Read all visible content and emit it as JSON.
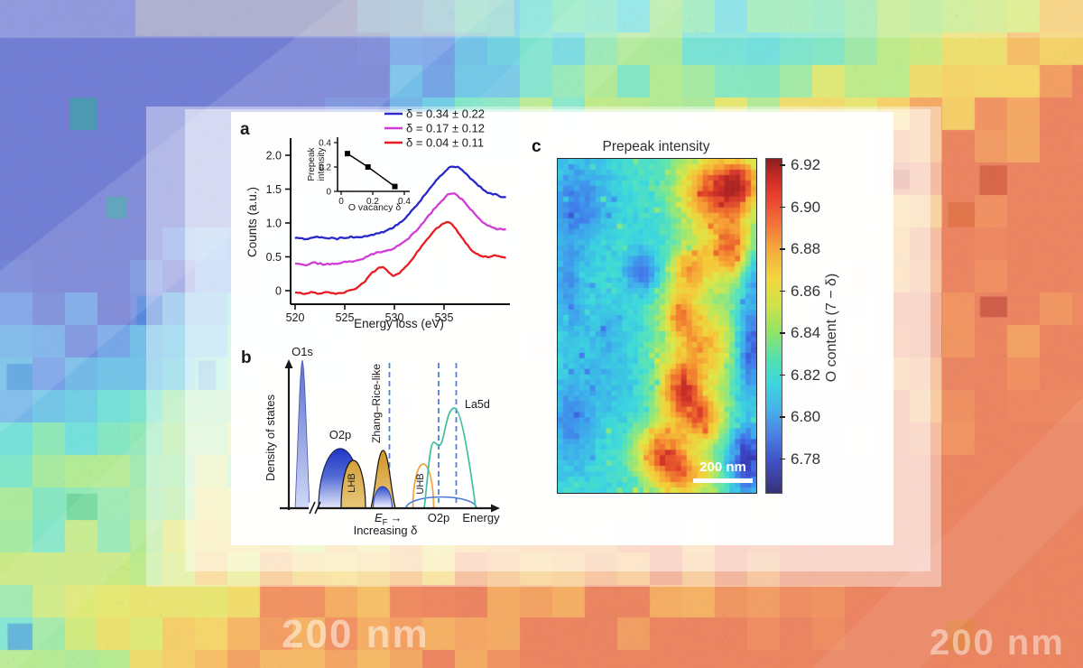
{
  "background": {
    "watermarks": [
      {
        "text": "200 nm"
      },
      {
        "text": "200 nm"
      }
    ]
  },
  "panels": {
    "a": {
      "label": "a"
    },
    "b": {
      "label": "b",
      "ylabel": "Density of states",
      "xlabel": "Energy",
      "ef": "E",
      "ef_sub": "F",
      "ef_arrow": "→",
      "increasing_delta": "Increasing δ",
      "bands": {
        "o1s": "O1s",
        "o2p_valence": "O2p",
        "lhb": "LHB",
        "zhang_rice": "Zhang–Rice-like",
        "uhb": "UHB",
        "la5d": "La5d",
        "o2p_conduction": "O2p"
      }
    },
    "c": {
      "label": "c"
    }
  },
  "chart_data": [
    {
      "id": "eels-spectra",
      "type": "line",
      "xlabel": "Energy loss (eV)",
      "ylabel": "Counts (a.u.)",
      "xlim": [
        520,
        541.5
      ],
      "ylim": [
        -0.15,
        2.15
      ],
      "xticks": [
        "520",
        "525",
        "530",
        "535"
      ],
      "yticks": [
        "0",
        "0.5",
        "1.0",
        "1.5",
        "2.0"
      ],
      "legend_position": "top-right",
      "series": [
        {
          "name": "δ = 0.34 ± 0.22",
          "color": "#2a28cb",
          "points": [
            [
              520,
              0.78
            ],
            [
              521,
              0.76
            ],
            [
              522,
              0.79
            ],
            [
              523,
              0.77
            ],
            [
              524,
              0.78
            ],
            [
              525,
              0.77
            ],
            [
              526,
              0.79
            ],
            [
              527,
              0.8
            ],
            [
              528,
              0.83
            ],
            [
              529,
              0.87
            ],
            [
              530,
              0.94
            ],
            [
              530.8,
              1.03
            ],
            [
              531.6,
              1.15
            ],
            [
              532.4,
              1.29
            ],
            [
              533.2,
              1.44
            ],
            [
              534,
              1.59
            ],
            [
              534.8,
              1.72
            ],
            [
              535.5,
              1.8
            ],
            [
              536,
              1.84
            ],
            [
              536.5,
              1.82
            ],
            [
              537.1,
              1.75
            ],
            [
              537.8,
              1.64
            ],
            [
              538.6,
              1.53
            ],
            [
              539.4,
              1.45
            ],
            [
              540.3,
              1.41
            ],
            [
              541.2,
              1.38
            ]
          ]
        },
        {
          "name": "δ = 0.17 ± 0.12",
          "color": "#d13bd6",
          "points": [
            [
              520,
              0.4
            ],
            [
              521,
              0.38
            ],
            [
              522,
              0.41
            ],
            [
              523,
              0.39
            ],
            [
              524,
              0.4
            ],
            [
              525,
              0.42
            ],
            [
              526,
              0.44
            ],
            [
              526.8,
              0.48
            ],
            [
              527.6,
              0.53
            ],
            [
              528.4,
              0.57
            ],
            [
              529.2,
              0.59
            ],
            [
              530,
              0.63
            ],
            [
              530.8,
              0.7
            ],
            [
              531.6,
              0.8
            ],
            [
              532.4,
              0.92
            ],
            [
              533.2,
              1.06
            ],
            [
              534,
              1.2
            ],
            [
              534.8,
              1.33
            ],
            [
              535.4,
              1.42
            ],
            [
              535.9,
              1.44
            ],
            [
              536.4,
              1.4
            ],
            [
              537,
              1.32
            ],
            [
              537.7,
              1.2
            ],
            [
              538.5,
              1.07
            ],
            [
              539.3,
              0.97
            ],
            [
              540.2,
              0.92
            ],
            [
              541.2,
              0.9
            ]
          ]
        },
        {
          "name": "δ = 0.04 ± 0.11",
          "color": "#e91c25",
          "points": [
            [
              520,
              -0.03
            ],
            [
              520.8,
              -0.05
            ],
            [
              521.6,
              -0.02
            ],
            [
              522.4,
              -0.04
            ],
            [
              523.2,
              -0.02
            ],
            [
              524,
              -0.05
            ],
            [
              524.8,
              -0.03
            ],
            [
              525.6,
              0.0
            ],
            [
              526.4,
              0.06
            ],
            [
              527.2,
              0.17
            ],
            [
              527.8,
              0.27
            ],
            [
              528.4,
              0.34
            ],
            [
              528.9,
              0.35
            ],
            [
              529.4,
              0.27
            ],
            [
              529.9,
              0.22
            ],
            [
              530.4,
              0.24
            ],
            [
              531,
              0.33
            ],
            [
              531.8,
              0.47
            ],
            [
              532.6,
              0.63
            ],
            [
              533.4,
              0.78
            ],
            [
              534.2,
              0.92
            ],
            [
              535,
              1.0
            ],
            [
              535.5,
              1.02
            ],
            [
              536,
              0.95
            ],
            [
              536.6,
              0.83
            ],
            [
              537.2,
              0.7
            ],
            [
              537.9,
              0.58
            ],
            [
              538.6,
              0.52
            ],
            [
              539.4,
              0.5
            ],
            [
              540.2,
              0.52
            ],
            [
              541.2,
              0.48
            ]
          ]
        }
      ]
    },
    {
      "id": "prepeak-vs-vacancy-inset",
      "type": "scatter",
      "xlabel": "O vacancy δ",
      "ylabel": "Prepeak intensity",
      "ylabel_lines": [
        "Prepeak",
        "intensity"
      ],
      "xticks": [
        "0",
        "0.2",
        "0.4"
      ],
      "yticks": [
        "0",
        "0.2",
        "0.4"
      ],
      "marker": "square",
      "color": "#000000",
      "line": true,
      "points": [
        [
          0.04,
          0.31
        ],
        [
          0.17,
          0.2
        ],
        [
          0.34,
          0.04
        ]
      ]
    },
    {
      "id": "prepeak-map",
      "type": "heatmap",
      "title": "Prepeak intensity",
      "colorbar_label": "O content (7 − δ)",
      "colorbar_ticks": [
        "6.92",
        "6.90",
        "6.88",
        "6.86",
        "6.84",
        "6.82",
        "6.80",
        "6.78"
      ],
      "scalebar": "200 nm",
      "palette": "jet",
      "grid": [
        37,
        62
      ],
      "base": 0.4,
      "hotspots": [
        [
          0.78,
          0.1,
          0.4,
          0.14,
          0.08
        ],
        [
          0.92,
          0.07,
          0.3,
          0.08,
          0.06
        ],
        [
          0.88,
          0.27,
          0.36,
          0.08,
          0.06
        ],
        [
          0.67,
          0.33,
          0.28,
          0.07,
          0.05
        ],
        [
          0.62,
          0.47,
          0.26,
          0.06,
          0.05
        ],
        [
          0.74,
          0.56,
          0.22,
          0.1,
          0.07
        ],
        [
          0.62,
          0.69,
          0.4,
          0.08,
          0.06
        ],
        [
          0.73,
          0.78,
          0.32,
          0.08,
          0.05
        ],
        [
          0.52,
          0.88,
          0.4,
          0.09,
          0.06
        ],
        [
          0.65,
          0.95,
          0.3,
          0.1,
          0.05
        ],
        [
          0.7,
          0.45,
          0.12,
          0.2,
          0.35
        ],
        [
          0.1,
          0.13,
          -0.2,
          0.11,
          0.09
        ],
        [
          0.05,
          0.38,
          -0.16,
          0.06,
          0.1
        ],
        [
          0.42,
          0.34,
          -0.26,
          0.06,
          0.045
        ],
        [
          0.25,
          0.52,
          -0.1,
          0.1,
          0.08
        ],
        [
          0.08,
          0.78,
          -0.18,
          0.08,
          0.1
        ],
        [
          0.3,
          0.7,
          -0.08,
          0.1,
          0.08
        ],
        [
          0.97,
          0.57,
          -0.3,
          0.05,
          0.1
        ],
        [
          0.95,
          0.9,
          -0.38,
          0.06,
          0.07
        ],
        [
          0.98,
          0.33,
          -0.18,
          0.04,
          0.07
        ],
        [
          0.55,
          0.18,
          -0.08,
          0.15,
          0.1
        ]
      ]
    }
  ]
}
